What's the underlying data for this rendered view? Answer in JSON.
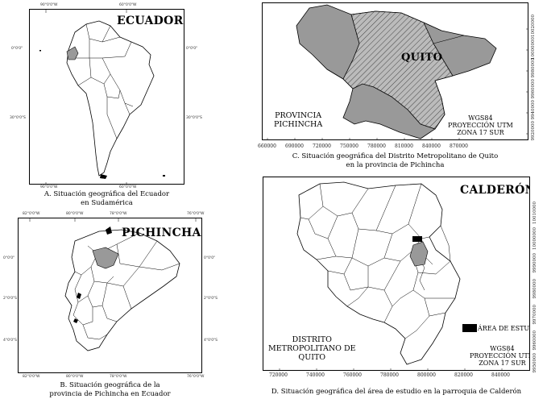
{
  "panel_a": {
    "title": "ECUADOR",
    "caption_line1": "A. Situación geográfica del Ecuador",
    "caption_line2": "en Sudamérica",
    "ticks_top": [
      "90°0'0\"W",
      "60°0'0\"W"
    ],
    "ticks_bottom": [
      "90°0'0\"W",
      "60°0'0\"W"
    ],
    "ticks_left": [
      "0°0'0\"",
      "30°0'0\"S"
    ],
    "ticks_right": [
      "0°0'0\"",
      "30°0'0\"S"
    ]
  },
  "panel_b": {
    "title": "PICHINCHA",
    "caption_line1": "B. Situación geográfica de la",
    "caption_line2": "provincia de Pichincha en Ecuador",
    "ticks_top": [
      "82°0'0\"W",
      "80°0'0\"W",
      "78°0'0\"W",
      "76°0'0\"W"
    ],
    "ticks_bottom": [
      "82°0'0\"W",
      "80°0'0\"W",
      "78°0'0\"W",
      "76°0'0\"W"
    ],
    "ticks_left": [
      "0°0'0\"",
      "2°0'0\"S",
      "4°0'0\"S"
    ],
    "ticks_right": [
      "0°0'0\"",
      "2°0'0\"S",
      "4°0'0\"S"
    ]
  },
  "panel_c": {
    "title": "QUITO",
    "province_line1": "PROVINCIA",
    "province_line2": "PICHINCHA",
    "proj_line1": "WGS84",
    "proj_line2": "PROYECCIÓN UTM",
    "proj_line3": "ZONA 17 SUR",
    "caption_line1": "C. Situación geográfica del Distrito Metropolitano de Quito",
    "caption_line2": "en la provincia de Pichincha",
    "x_ticks": [
      "660000",
      "690000",
      "720000",
      "750000",
      "780000",
      "810000",
      "840000",
      "870000"
    ],
    "y_ticks": [
      "10020000",
      "10000000",
      "9980000",
      "9960000",
      "9940000",
      "9920000"
    ]
  },
  "panel_d": {
    "title": "CALDERÓN",
    "study_area_label": "ÁREA DE ESTUDIO",
    "district_line1": "DISTRITO",
    "district_line2": "METROPOLITANO DE",
    "district_line3": "QUITO",
    "proj_line1": "WGS84",
    "proj_line2": "PROYECCIÓN UTM",
    "proj_line3": "ZONA 17 SUR",
    "caption": "D. Situación geográfica del área de estudio en la parroquia de Calderón",
    "x_ticks": [
      "720000",
      "740000",
      "760000",
      "780000",
      "800000",
      "820000",
      "840000"
    ],
    "y_ticks": [
      "10010000",
      "10000000",
      "9990000",
      "9980000",
      "9970000",
      "9960000",
      "9950000"
    ]
  },
  "colors": {
    "highlight_fill": "#999999",
    "study_fill": "#000000",
    "border": "#000000"
  }
}
